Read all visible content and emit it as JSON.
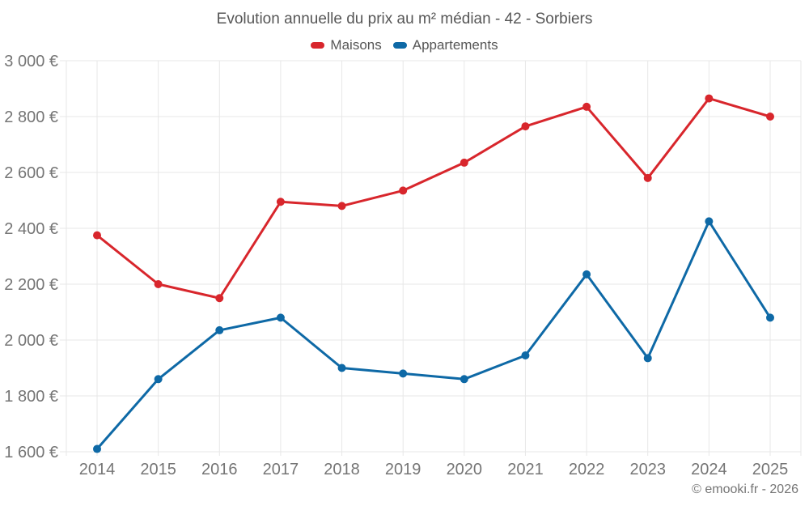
{
  "header": {
    "title": "Evolution annuelle du prix au m² médian - 42 - Sorbiers"
  },
  "footer": {
    "credit": "© emooki.fr - 2026"
  },
  "colors": {
    "maisons": "#d8262c",
    "appartements": "#0e69a6",
    "grid": "#e7e7e7",
    "axis_text": "#757575",
    "title_text": "#565656",
    "background": "#ffffff"
  },
  "chart_data": {
    "type": "line",
    "title": "Evolution annuelle du prix au m² médian - 42 - Sorbiers",
    "categories": [
      "2014",
      "2015",
      "2016",
      "2017",
      "2018",
      "2019",
      "2020",
      "2021",
      "2022",
      "2023",
      "2024",
      "2025"
    ],
    "series": [
      {
        "name": "Maisons",
        "color": "#d8262c",
        "values": [
          2375,
          2200,
          2150,
          2495,
          2480,
          2535,
          2635,
          2765,
          2835,
          2580,
          2865,
          2800
        ]
      },
      {
        "name": "Appartements",
        "color": "#0e69a6",
        "values": [
          1610,
          1860,
          2035,
          2080,
          1900,
          1880,
          1860,
          1945,
          2235,
          1935,
          2425,
          2080
        ]
      }
    ],
    "ylim": [
      1600,
      3000
    ],
    "xlabel": "",
    "ylabel": "",
    "yticks": [
      {
        "value": 3000,
        "label": "3 000 €"
      },
      {
        "value": 2800,
        "label": "2 800 €"
      },
      {
        "value": 2600,
        "label": "2 600 €"
      },
      {
        "value": 2400,
        "label": "2 400 €"
      },
      {
        "value": 2200,
        "label": "2 200 €"
      },
      {
        "value": 2000,
        "label": "2 000 €"
      },
      {
        "value": 1800,
        "label": "1 800 €"
      },
      {
        "value": 1600,
        "label": "1 600 €"
      }
    ],
    "grid": true,
    "legend_position": "top"
  }
}
